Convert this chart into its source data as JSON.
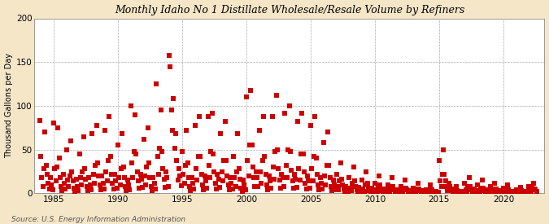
{
  "title": "Monthly Idaho No 1 Distillate Wholesale/Resale Volume by Refiners",
  "ylabel": "Thousand Gallons per Day",
  "source": "Source: U.S. Energy Information Administration",
  "background_color": "#f5e6c8",
  "plot_background_color": "#ffffff",
  "marker_color": "#cc0000",
  "marker": "s",
  "marker_size": 4,
  "xlim": [
    1983.5,
    2023.2
  ],
  "ylim": [
    0,
    200
  ],
  "yticks": [
    0,
    50,
    100,
    150,
    200
  ],
  "xticks": [
    1985,
    1990,
    1995,
    2000,
    2005,
    2010,
    2015,
    2020
  ],
  "grid_color": "#aaaaaa",
  "dates": [
    1983.917,
    1984.0,
    1984.083,
    1984.167,
    1984.25,
    1984.333,
    1984.417,
    1984.5,
    1984.583,
    1984.667,
    1984.75,
    1984.833,
    1984.917,
    1985.0,
    1985.083,
    1985.167,
    1985.25,
    1985.333,
    1985.417,
    1985.5,
    1985.583,
    1985.667,
    1985.75,
    1985.833,
    1985.917,
    1986.0,
    1986.083,
    1986.167,
    1986.25,
    1986.333,
    1986.417,
    1986.5,
    1986.583,
    1986.667,
    1986.75,
    1986.833,
    1986.917,
    1987.0,
    1987.083,
    1987.167,
    1987.25,
    1987.333,
    1987.417,
    1987.5,
    1987.583,
    1987.667,
    1987.75,
    1987.833,
    1987.917,
    1988.0,
    1988.083,
    1988.167,
    1988.25,
    1988.333,
    1988.417,
    1988.5,
    1988.583,
    1988.667,
    1988.75,
    1988.833,
    1988.917,
    1989.0,
    1989.083,
    1989.167,
    1989.25,
    1989.333,
    1989.417,
    1989.5,
    1989.583,
    1989.667,
    1989.75,
    1989.833,
    1989.917,
    1990.0,
    1990.083,
    1990.167,
    1990.25,
    1990.333,
    1990.417,
    1990.5,
    1990.583,
    1990.667,
    1990.75,
    1990.833,
    1990.917,
    1991.0,
    1991.083,
    1991.167,
    1991.25,
    1991.333,
    1991.417,
    1991.5,
    1991.583,
    1991.667,
    1991.75,
    1991.833,
    1991.917,
    1992.0,
    1992.083,
    1992.167,
    1992.25,
    1992.333,
    1992.417,
    1992.5,
    1992.583,
    1992.667,
    1992.75,
    1992.833,
    1992.917,
    1993.0,
    1993.083,
    1993.167,
    1993.25,
    1993.333,
    1993.417,
    1993.5,
    1993.583,
    1993.667,
    1993.75,
    1993.833,
    1993.917,
    1994.0,
    1994.083,
    1994.167,
    1994.25,
    1994.333,
    1994.417,
    1994.5,
    1994.583,
    1994.667,
    1994.75,
    1994.833,
    1994.917,
    1995.0,
    1995.083,
    1995.167,
    1995.25,
    1995.333,
    1995.417,
    1995.5,
    1995.583,
    1995.667,
    1995.75,
    1995.833,
    1995.917,
    1996.0,
    1996.083,
    1996.167,
    1996.25,
    1996.333,
    1996.417,
    1996.5,
    1996.583,
    1996.667,
    1996.75,
    1996.833,
    1996.917,
    1997.0,
    1997.083,
    1997.167,
    1997.25,
    1997.333,
    1997.417,
    1997.5,
    1997.583,
    1997.667,
    1997.75,
    1997.833,
    1997.917,
    1998.0,
    1998.083,
    1998.167,
    1998.25,
    1998.333,
    1998.417,
    1998.5,
    1998.583,
    1998.667,
    1998.75,
    1998.833,
    1998.917,
    1999.0,
    1999.083,
    1999.167,
    1999.25,
    1999.333,
    1999.417,
    1999.5,
    1999.583,
    1999.667,
    1999.75,
    1999.833,
    1999.917,
    2000.0,
    2000.083,
    2000.167,
    2000.25,
    2000.333,
    2000.417,
    2000.5,
    2000.583,
    2000.667,
    2000.75,
    2000.833,
    2000.917,
    2001.0,
    2001.083,
    2001.167,
    2001.25,
    2001.333,
    2001.417,
    2001.5,
    2001.583,
    2001.667,
    2001.75,
    2001.833,
    2001.917,
    2002.0,
    2002.083,
    2002.167,
    2002.25,
    2002.333,
    2002.417,
    2002.5,
    2002.583,
    2002.667,
    2002.75,
    2002.833,
    2002.917,
    2003.0,
    2003.083,
    2003.167,
    2003.25,
    2003.333,
    2003.417,
    2003.5,
    2003.583,
    2003.667,
    2003.75,
    2003.833,
    2003.917,
    2004.0,
    2004.083,
    2004.167,
    2004.25,
    2004.333,
    2004.417,
    2004.5,
    2004.583,
    2004.667,
    2004.75,
    2004.833,
    2004.917,
    2005.0,
    2005.083,
    2005.167,
    2005.25,
    2005.333,
    2005.417,
    2005.5,
    2005.583,
    2005.667,
    2005.75,
    2005.833,
    2005.917,
    2006.0,
    2006.083,
    2006.167,
    2006.25,
    2006.333,
    2006.417,
    2006.5,
    2006.583,
    2006.667,
    2006.75,
    2006.833,
    2006.917,
    2007.0,
    2007.083,
    2007.167,
    2007.25,
    2007.333,
    2007.417,
    2007.5,
    2007.583,
    2007.667,
    2007.75,
    2007.833,
    2007.917,
    2008.0,
    2008.083,
    2008.167,
    2008.25,
    2008.333,
    2008.417,
    2008.5,
    2008.583,
    2008.667,
    2008.75,
    2008.833,
    2008.917,
    2009.0,
    2009.083,
    2009.167,
    2009.25,
    2009.333,
    2009.417,
    2009.5,
    2009.583,
    2009.667,
    2009.75,
    2009.833,
    2009.917,
    2010.0,
    2010.083,
    2010.167,
    2010.25,
    2010.333,
    2010.417,
    2010.5,
    2010.583,
    2010.667,
    2010.75,
    2010.833,
    2010.917,
    2011.0,
    2011.083,
    2011.167,
    2011.25,
    2011.333,
    2011.417,
    2011.5,
    2011.583,
    2011.667,
    2011.75,
    2011.833,
    2011.917,
    2012.0,
    2012.083,
    2012.167,
    2012.25,
    2012.333,
    2012.417,
    2012.5,
    2012.583,
    2012.667,
    2012.75,
    2012.833,
    2012.917,
    2013.0,
    2013.083,
    2013.167,
    2013.25,
    2013.333,
    2013.417,
    2013.5,
    2013.583,
    2013.667,
    2013.75,
    2013.833,
    2013.917,
    2014.0,
    2014.083,
    2014.167,
    2014.25,
    2014.333,
    2014.417,
    2014.5,
    2014.583,
    2014.667,
    2014.75,
    2014.833,
    2014.917,
    2015.0,
    2015.083,
    2015.167,
    2015.25,
    2015.333,
    2015.417,
    2015.5,
    2015.583,
    2015.667,
    2015.75,
    2015.833,
    2015.917,
    2016.0,
    2016.083,
    2016.167,
    2016.25,
    2016.333,
    2016.417,
    2016.5,
    2016.583,
    2016.667,
    2016.75,
    2016.833,
    2016.917,
    2017.0,
    2017.083,
    2017.167,
    2017.25,
    2017.333,
    2017.417,
    2017.5,
    2017.583,
    2017.667,
    2017.75,
    2017.833,
    2017.917,
    2018.0,
    2018.083,
    2018.167,
    2018.25,
    2018.333,
    2018.417,
    2018.5,
    2018.583,
    2018.667,
    2018.75,
    2018.833,
    2018.917,
    2019.0,
    2019.083,
    2019.167,
    2019.25,
    2019.333,
    2019.417,
    2019.5,
    2019.583,
    2019.667,
    2019.75,
    2019.833,
    2019.917,
    2020.0,
    2020.083,
    2020.167,
    2020.25,
    2020.333,
    2020.417,
    2020.5,
    2020.583,
    2020.667,
    2020.75,
    2020.833,
    2020.917,
    2021.0,
    2021.083,
    2021.167,
    2021.25,
    2021.333,
    2021.417,
    2021.5,
    2021.583,
    2021.667,
    2021.75,
    2021.833,
    2021.917,
    2022.0,
    2022.083,
    2022.167,
    2022.25,
    2022.333,
    2022.417,
    2022.5,
    2022.583
  ],
  "values": [
    83,
    42,
    18,
    8,
    28,
    70,
    32,
    22,
    12,
    5,
    18,
    10,
    4,
    80,
    28,
    14,
    30,
    75,
    40,
    18,
    8,
    3,
    22,
    12,
    5,
    50,
    15,
    8,
    20,
    60,
    25,
    14,
    6,
    2,
    16,
    8,
    3,
    45,
    18,
    10,
    25,
    65,
    28,
    16,
    8,
    3,
    18,
    10,
    4,
    68,
    22,
    12,
    32,
    78,
    35,
    20,
    10,
    4,
    20,
    12,
    5,
    72,
    25,
    14,
    38,
    88,
    42,
    22,
    12,
    5,
    22,
    14,
    6,
    55,
    18,
    10,
    28,
    68,
    30,
    18,
    8,
    3,
    15,
    10,
    4,
    100,
    35,
    18,
    48,
    90,
    45,
    25,
    14,
    6,
    22,
    16,
    7,
    62,
    20,
    10,
    30,
    75,
    35,
    18,
    8,
    3,
    18,
    12,
    5,
    125,
    42,
    22,
    52,
    95,
    48,
    28,
    16,
    7,
    25,
    18,
    8,
    158,
    145,
    95,
    72,
    108,
    52,
    68,
    38,
    15,
    28,
    20,
    9,
    48,
    22,
    12,
    32,
    72,
    35,
    18,
    8,
    3,
    18,
    12,
    5,
    78,
    28,
    15,
    42,
    88,
    42,
    22,
    10,
    4,
    20,
    14,
    6,
    88,
    32,
    18,
    48,
    92,
    45,
    25,
    12,
    5,
    22,
    16,
    7,
    68,
    25,
    14,
    38,
    82,
    38,
    20,
    10,
    4,
    18,
    12,
    5,
    42,
    18,
    8,
    25,
    68,
    28,
    16,
    6,
    2,
    15,
    10,
    4,
    110,
    38,
    20,
    55,
    118,
    55,
    30,
    18,
    8,
    25,
    18,
    8,
    72,
    25,
    12,
    38,
    88,
    42,
    22,
    10,
    4,
    20,
    14,
    6,
    88,
    30,
    16,
    48,
    112,
    50,
    28,
    15,
    6,
    22,
    18,
    8,
    92,
    32,
    18,
    50,
    100,
    48,
    26,
    14,
    6,
    22,
    16,
    7,
    82,
    28,
    15,
    45,
    92,
    45,
    25,
    12,
    5,
    20,
    14,
    6,
    78,
    28,
    14,
    42,
    88,
    40,
    22,
    10,
    4,
    18,
    12,
    5,
    58,
    20,
    10,
    32,
    70,
    32,
    18,
    8,
    3,
    15,
    10,
    4,
    22,
    8,
    4,
    14,
    35,
    16,
    10,
    5,
    2,
    8,
    5,
    2,
    18,
    6,
    3,
    12,
    30,
    14,
    8,
    4,
    1,
    7,
    4,
    2,
    15,
    5,
    2,
    10,
    25,
    12,
    6,
    3,
    1,
    6,
    3,
    1,
    12,
    4,
    2,
    8,
    20,
    10,
    5,
    3,
    1,
    5,
    3,
    1,
    10,
    4,
    2,
    7,
    18,
    8,
    4,
    2,
    1,
    4,
    2,
    1,
    8,
    3,
    1,
    6,
    15,
    6,
    4,
    2,
    1,
    3,
    2,
    1,
    6,
    2,
    1,
    5,
    12,
    5,
    3,
    2,
    1,
    3,
    2,
    1,
    4,
    2,
    1,
    4,
    10,
    4,
    2,
    1,
    1,
    2,
    1,
    1,
    38,
    14,
    8,
    22,
    50,
    22,
    14,
    8,
    3,
    12,
    8,
    3,
    5,
    2,
    1,
    4,
    8,
    3,
    2,
    1,
    1,
    2,
    1,
    1,
    12,
    4,
    2,
    8,
    18,
    8,
    4,
    2,
    1,
    5,
    3,
    1,
    10,
    3,
    2,
    6,
    15,
    6,
    3,
    2,
    1,
    4,
    2,
    1,
    8,
    3,
    1,
    5,
    12,
    5,
    3,
    1,
    1,
    3,
    2,
    1,
    6,
    2,
    1,
    4,
    10,
    4,
    2,
    1,
    1,
    2,
    1,
    1,
    4,
    1,
    1,
    3,
    7,
    3,
    2,
    1,
    1,
    2,
    1,
    1,
    8,
    3,
    2,
    6,
    12,
    5,
    4,
    2
  ]
}
